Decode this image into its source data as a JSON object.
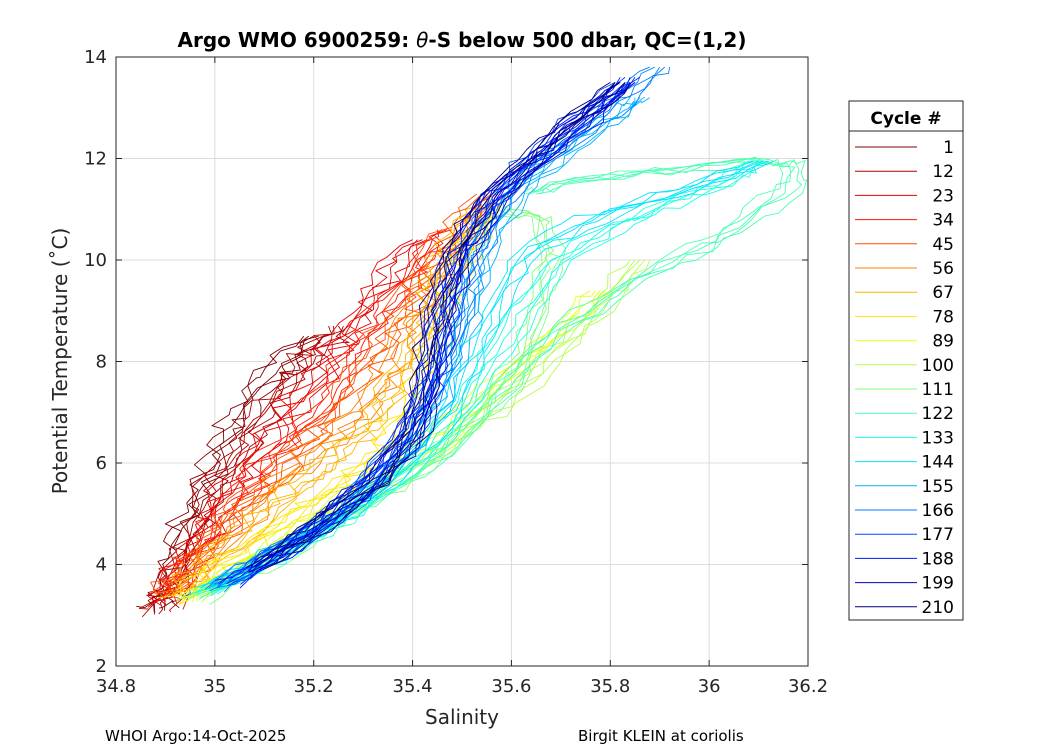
{
  "chart_data": {
    "type": "line",
    "title_pre": "Argo WMO 6900259: ",
    "title_theta": "θ",
    "title_post": "-S below 500 dbar,  QC=(1,2)",
    "xlabel": "Salinity",
    "ylabel": "Potential Temperature (˚C)",
    "xlim": [
      34.8,
      36.2
    ],
    "ylim": [
      2,
      14
    ],
    "xticks": [
      34.8,
      35,
      35.2,
      35.4,
      35.6,
      35.8,
      36,
      36.2
    ],
    "xtick_labels": [
      "34.8",
      "35",
      "35.2",
      "35.4",
      "35.6",
      "35.8",
      "36",
      "36.2"
    ],
    "yticks": [
      2,
      4,
      6,
      8,
      10,
      12,
      14
    ],
    "ytick_labels": [
      "2",
      "4",
      "6",
      "8",
      "10",
      "12",
      "14"
    ],
    "grid": true,
    "legend": {
      "title": "Cycle #",
      "placement": "outside-right",
      "entries": [
        {
          "label": "1",
          "color": "#800000"
        },
        {
          "label": "12",
          "color": "#b30000"
        },
        {
          "label": "23",
          "color": "#e60000"
        },
        {
          "label": "34",
          "color": "#ff1a00"
        },
        {
          "label": "45",
          "color": "#ff4d00"
        },
        {
          "label": "56",
          "color": "#ff8000"
        },
        {
          "label": "67",
          "color": "#ffb300"
        },
        {
          "label": "78",
          "color": "#ffe600"
        },
        {
          "label": "89",
          "color": "#e6ff1a"
        },
        {
          "label": "100",
          "color": "#b3ff4d"
        },
        {
          "label": "111",
          "color": "#80ff80"
        },
        {
          "label": "122",
          "color": "#4dffb3"
        },
        {
          "label": "133",
          "color": "#1affe6"
        },
        {
          "label": "144",
          "color": "#00e6ff"
        },
        {
          "label": "155",
          "color": "#00b3ff"
        },
        {
          "label": "166",
          "color": "#0080ff"
        },
        {
          "label": "177",
          "color": "#004dff"
        },
        {
          "label": "188",
          "color": "#001aff"
        },
        {
          "label": "199",
          "color": "#0000cc"
        },
        {
          "label": "210",
          "color": "#000080"
        }
      ]
    },
    "series": [
      {
        "name": "1",
        "color": "#800000",
        "points": [
          [
            34.89,
            3.1
          ],
          [
            34.9,
            3.5
          ],
          [
            34.92,
            4.2
          ],
          [
            34.95,
            5.0
          ],
          [
            34.99,
            5.8
          ],
          [
            35.03,
            6.6
          ],
          [
            35.07,
            7.3
          ],
          [
            35.13,
            7.9
          ],
          [
            35.2,
            8.5
          ]
        ]
      },
      {
        "name": "12",
        "color": "#b30000",
        "points": [
          [
            34.88,
            3.05
          ],
          [
            34.91,
            3.6
          ],
          [
            34.95,
            4.5
          ],
          [
            35.0,
            5.5
          ],
          [
            35.05,
            6.3
          ],
          [
            35.1,
            7.0
          ],
          [
            35.15,
            7.7
          ],
          [
            35.2,
            8.2
          ],
          [
            35.25,
            8.7
          ]
        ]
      },
      {
        "name": "23",
        "color": "#e60000",
        "points": [
          [
            34.89,
            3.2
          ],
          [
            34.93,
            3.9
          ],
          [
            34.98,
            4.7
          ],
          [
            35.04,
            5.6
          ],
          [
            35.1,
            6.4
          ],
          [
            35.17,
            7.3
          ],
          [
            35.24,
            8.2
          ],
          [
            35.3,
            9.0
          ],
          [
            35.36,
            9.8
          ],
          [
            35.42,
            10.4
          ]
        ]
      },
      {
        "name": "34",
        "color": "#ff1a00",
        "points": [
          [
            34.9,
            3.3
          ],
          [
            34.95,
            4.0
          ],
          [
            35.01,
            4.8
          ],
          [
            35.08,
            5.7
          ],
          [
            35.15,
            6.5
          ],
          [
            35.22,
            7.4
          ],
          [
            35.29,
            8.3
          ],
          [
            35.35,
            9.1
          ],
          [
            35.41,
            9.9
          ],
          [
            35.47,
            10.6
          ]
        ]
      },
      {
        "name": "45",
        "color": "#ff4d00",
        "points": [
          [
            34.9,
            3.4
          ],
          [
            34.96,
            4.1
          ],
          [
            35.03,
            4.9
          ],
          [
            35.11,
            5.7
          ],
          [
            35.19,
            6.5
          ],
          [
            35.26,
            7.3
          ],
          [
            35.32,
            8.1
          ],
          [
            35.37,
            8.9
          ],
          [
            35.42,
            9.7
          ],
          [
            35.48,
            10.5
          ],
          [
            35.55,
            11.3
          ]
        ]
      },
      {
        "name": "56",
        "color": "#ff8000",
        "points": [
          [
            34.91,
            3.4
          ],
          [
            34.98,
            4.1
          ],
          [
            35.06,
            4.9
          ],
          [
            35.14,
            5.7
          ],
          [
            35.22,
            6.4
          ],
          [
            35.3,
            7.1
          ],
          [
            35.36,
            7.9
          ],
          [
            35.4,
            8.8
          ],
          [
            35.44,
            9.6
          ],
          [
            35.5,
            10.4
          ],
          [
            35.56,
            11.2
          ]
        ]
      },
      {
        "name": "67",
        "color": "#ffb300",
        "points": [
          [
            34.92,
            3.4
          ],
          [
            35.0,
            4.1
          ],
          [
            35.09,
            4.9
          ],
          [
            35.18,
            5.6
          ],
          [
            35.26,
            6.2
          ],
          [
            35.33,
            6.9
          ],
          [
            35.38,
            7.7
          ],
          [
            35.42,
            8.6
          ],
          [
            35.45,
            9.5
          ],
          [
            35.49,
            10.4
          ],
          [
            35.55,
            11.1
          ]
        ]
      },
      {
        "name": "78",
        "color": "#ffe600",
        "points": [
          [
            34.93,
            3.3
          ],
          [
            35.02,
            4.0
          ],
          [
            35.12,
            4.7
          ],
          [
            35.22,
            5.4
          ],
          [
            35.31,
            6.0
          ],
          [
            35.37,
            6.6
          ],
          [
            35.41,
            7.4
          ],
          [
            35.44,
            8.3
          ],
          [
            35.47,
            9.2
          ],
          [
            35.5,
            10.1
          ],
          [
            35.55,
            10.9
          ]
        ]
      },
      {
        "name": "89",
        "color": "#e6ff1a",
        "points": [
          [
            34.94,
            3.3
          ],
          [
            35.04,
            3.9
          ],
          [
            35.15,
            4.6
          ],
          [
            35.26,
            5.3
          ],
          [
            35.36,
            6.0
          ],
          [
            35.46,
            6.7
          ],
          [
            35.56,
            7.5
          ],
          [
            35.66,
            8.3
          ],
          [
            35.74,
            9.0
          ],
          [
            35.78,
            9.4
          ]
        ]
      },
      {
        "name": "100",
        "color": "#b3ff4d",
        "points": [
          [
            34.95,
            3.3
          ],
          [
            35.06,
            3.9
          ],
          [
            35.18,
            4.6
          ],
          [
            35.3,
            5.3
          ],
          [
            35.42,
            6.0
          ],
          [
            35.53,
            6.8
          ],
          [
            35.63,
            7.6
          ],
          [
            35.72,
            8.4
          ],
          [
            35.8,
            9.3
          ],
          [
            35.86,
            10.0
          ]
        ]
      },
      {
        "name": "111",
        "color": "#80ff80",
        "points": [
          [
            34.96,
            3.3
          ],
          [
            35.08,
            3.9
          ],
          [
            35.2,
            4.6
          ],
          [
            35.32,
            5.3
          ],
          [
            35.44,
            6.1
          ],
          [
            35.55,
            7.0
          ],
          [
            35.62,
            8.0
          ],
          [
            35.66,
            9.0
          ],
          [
            35.68,
            10.0
          ],
          [
            35.66,
            10.8
          ],
          [
            35.58,
            11.0
          ]
        ]
      },
      {
        "name": "122",
        "color": "#4dffb3",
        "points": [
          [
            34.97,
            3.4
          ],
          [
            35.1,
            4.0
          ],
          [
            35.22,
            4.7
          ],
          [
            35.34,
            5.4
          ],
          [
            35.46,
            6.2
          ],
          [
            35.56,
            7.2
          ],
          [
            35.66,
            8.3
          ],
          [
            35.78,
            9.2
          ],
          [
            35.92,
            9.9
          ],
          [
            36.05,
            10.6
          ],
          [
            36.16,
            11.4
          ],
          [
            36.17,
            11.9
          ],
          [
            36.1,
            11.95
          ],
          [
            35.9,
            11.75
          ],
          [
            35.7,
            11.5
          ],
          [
            35.64,
            11.3
          ]
        ]
      },
      {
        "name": "133",
        "color": "#1affe6",
        "points": [
          [
            34.97,
            3.4
          ],
          [
            35.12,
            4.1
          ],
          [
            35.24,
            4.8
          ],
          [
            35.36,
            5.6
          ],
          [
            35.47,
            6.6
          ],
          [
            35.55,
            7.8
          ],
          [
            35.62,
            9.0
          ],
          [
            35.7,
            10.0
          ],
          [
            35.8,
            10.6
          ],
          [
            35.92,
            11.1
          ],
          [
            36.05,
            11.6
          ],
          [
            36.1,
            11.95
          ]
        ]
      },
      {
        "name": "144",
        "color": "#00e6ff",
        "points": [
          [
            34.98,
            3.5
          ],
          [
            35.12,
            4.2
          ],
          [
            35.26,
            5.0
          ],
          [
            35.38,
            5.9
          ],
          [
            35.47,
            7.0
          ],
          [
            35.53,
            8.2
          ],
          [
            35.58,
            9.3
          ],
          [
            35.64,
            10.2
          ],
          [
            35.76,
            10.8
          ],
          [
            35.95,
            11.4
          ],
          [
            36.11,
            11.95
          ]
        ]
      },
      {
        "name": "155",
        "color": "#00b3ff",
        "points": [
          [
            35.0,
            3.6
          ],
          [
            35.13,
            4.3
          ],
          [
            35.27,
            5.1
          ],
          [
            35.38,
            6.1
          ],
          [
            35.46,
            7.3
          ],
          [
            35.5,
            8.5
          ],
          [
            35.53,
            9.6
          ],
          [
            35.56,
            10.6
          ],
          [
            35.62,
            11.4
          ],
          [
            35.72,
            12.2
          ],
          [
            35.82,
            12.9
          ],
          [
            35.86,
            13.2
          ]
        ]
      },
      {
        "name": "166",
        "color": "#0080ff",
        "points": [
          [
            35.0,
            3.5
          ],
          [
            35.13,
            4.3
          ],
          [
            35.27,
            5.2
          ],
          [
            35.38,
            6.3
          ],
          [
            35.45,
            7.5
          ],
          [
            35.49,
            8.7
          ],
          [
            35.52,
            9.8
          ],
          [
            35.56,
            10.8
          ],
          [
            35.63,
            11.7
          ],
          [
            35.74,
            12.5
          ],
          [
            35.84,
            13.3
          ],
          [
            35.9,
            13.8
          ]
        ]
      },
      {
        "name": "177",
        "color": "#004dff",
        "points": [
          [
            35.02,
            3.6
          ],
          [
            35.15,
            4.4
          ],
          [
            35.28,
            5.3
          ],
          [
            35.38,
            6.4
          ],
          [
            35.44,
            7.6
          ],
          [
            35.47,
            8.8
          ],
          [
            35.5,
            10.0
          ],
          [
            35.55,
            11.0
          ],
          [
            35.63,
            11.9
          ],
          [
            35.73,
            12.7
          ],
          [
            35.83,
            13.5
          ]
        ]
      },
      {
        "name": "188",
        "color": "#001aff",
        "points": [
          [
            35.03,
            3.6
          ],
          [
            35.16,
            4.4
          ],
          [
            35.29,
            5.4
          ],
          [
            35.39,
            6.5
          ],
          [
            35.44,
            7.7
          ],
          [
            35.46,
            8.9
          ],
          [
            35.49,
            10.1
          ],
          [
            35.55,
            11.1
          ],
          [
            35.64,
            11.9
          ],
          [
            35.75,
            12.8
          ],
          [
            35.84,
            13.6
          ]
        ]
      },
      {
        "name": "199",
        "color": "#0000cc",
        "points": [
          [
            35.08,
            3.9
          ],
          [
            35.2,
            4.7
          ],
          [
            35.32,
            5.6
          ],
          [
            35.4,
            6.6
          ],
          [
            35.44,
            7.8
          ],
          [
            35.46,
            9.0
          ],
          [
            35.5,
            10.2
          ],
          [
            35.56,
            11.1
          ],
          [
            35.65,
            12.0
          ],
          [
            35.75,
            12.8
          ],
          [
            35.83,
            13.5
          ]
        ]
      },
      {
        "name": "210",
        "color": "#000080",
        "points": [
          [
            35.08,
            3.9
          ],
          [
            35.2,
            4.7
          ],
          [
            35.33,
            5.6
          ],
          [
            35.41,
            6.7
          ],
          [
            35.43,
            7.9
          ],
          [
            35.45,
            9.1
          ],
          [
            35.49,
            10.2
          ],
          [
            35.55,
            11.2
          ],
          [
            35.64,
            12.0
          ],
          [
            35.73,
            12.8
          ],
          [
            35.82,
            13.5
          ]
        ]
      }
    ]
  },
  "footer": {
    "left": "WHOI Argo:14-Oct-2025",
    "right": "Birgit KLEIN at coriolis"
  }
}
